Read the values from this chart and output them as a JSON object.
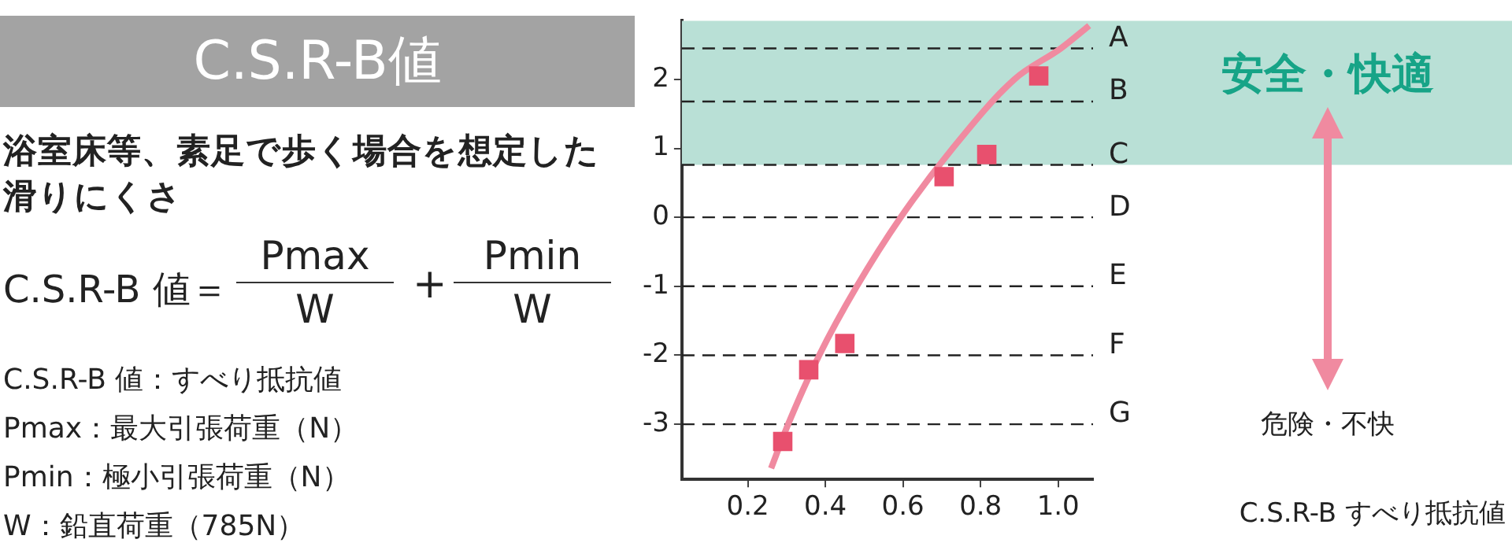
{
  "chart_data": {
    "type": "scatter",
    "title": "C.S.R-B値",
    "subtitle": "浴室床等、素足で歩く場合を想定した滑りにくさ",
    "annotations": [
      "C.S.R-B 値＝",
      "Pmax",
      "W",
      "+",
      "Pmin",
      "W",
      "C.S.R-B 値：すべり抵抗値",
      "Pmax：最大引張荷重（N）",
      "Pmin：極小引張荷重（N）",
      "W：鉛直荷重（785N）",
      "危険・不快",
      "C.S.R-B すべり抵抗値"
    ],
    "x": [
      0.95,
      0.816,
      0.706,
      0.45,
      0.357,
      0.29
    ],
    "series": [
      {
        "color": "#e8506e",
        "values": [
          2.05,
          0.91,
          0.59,
          -1.83,
          -2.21,
          -3.25
        ],
        "marker": "square"
      },
      {
        "type": "line",
        "color": "#f08aa0",
        "x": [
          0.26,
          0.304,
          0.384,
          0.481,
          0.594,
          0.728,
          0.887,
          1.007,
          1.08
        ],
        "values": [
          -3.64,
          -3,
          -2,
          -1,
          0,
          1,
          2,
          2.45,
          2.78
        ],
        "marker": "none",
        "line_style": "solid"
      }
    ],
    "xlim": [
      0.03,
      1.09
    ],
    "xticks": [
      0.2,
      0.4,
      0.6,
      0.8,
      {
        "value": 1,
        "label": "1.0"
      }
    ],
    "ylim": [
      -3.8,
      2.85
    ],
    "yticks": [
      -3,
      -2,
      -1,
      0,
      1,
      2
    ],
    "ref_lines": [
      {
        "axis": "y",
        "value": 2.45,
        "label": "A",
        "line_style": "dashed",
        "color": "#222222"
      },
      {
        "axis": "y",
        "value": 1.68,
        "label": "B",
        "line_style": "dashed",
        "color": "#222222"
      },
      {
        "axis": "y",
        "value": 0.76,
        "label": "C",
        "line_style": "dashed",
        "color": "#222222"
      },
      {
        "axis": "y",
        "value": 0,
        "label": "D",
        "line_style": "dashed",
        "color": "#222222"
      },
      {
        "axis": "y",
        "value": -1,
        "label": "E",
        "line_style": "dashed",
        "color": "#222222"
      },
      {
        "axis": "y",
        "value": -2,
        "label": "F",
        "line_style": "dashed",
        "color": "#222222"
      },
      {
        "axis": "y",
        "value": -3,
        "label": "G",
        "line_style": "dashed",
        "color": "#222222"
      }
    ],
    "bands": [
      {
        "axis": "y",
        "from": 0.76,
        "to": 2.85,
        "label": "安全・快適",
        "color": "#b9e0d6"
      }
    ],
    "grid": false,
    "legend": false
  }
}
